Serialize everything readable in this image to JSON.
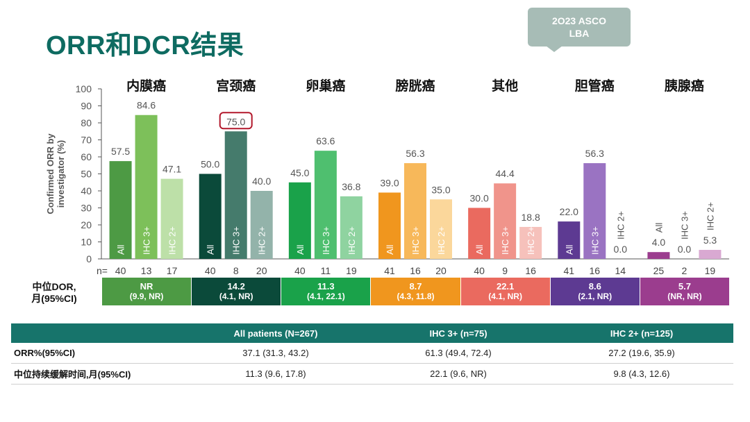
{
  "title": "ORR和DCR结果",
  "badge": {
    "line1": "2O23 ASCO",
    "line2": "LBA"
  },
  "dor_row_label": {
    "line1": "中位DOR,",
    "line2": "月(95%CI)"
  },
  "colors": {
    "axis": "#555555",
    "title": "#0e6b61",
    "table_header": "#17746b",
    "highlight_box": "#b2182b"
  },
  "chart_data": {
    "type": "bar",
    "ylabel": "Confirmed ORR by investigator (%)",
    "ylim": [
      0,
      100
    ],
    "yticks": [
      0,
      10,
      20,
      30,
      40,
      50,
      60,
      70,
      80,
      90,
      100
    ],
    "n_prefix": "n=",
    "highlight": {
      "group": 1,
      "bar": 1
    },
    "groups": [
      {
        "name": "内膜癌",
        "color": "#4d9a44",
        "dor": {
          "value": "NR",
          "ci": "(9.9, NR)"
        },
        "bars": [
          {
            "label": "All",
            "value": 57.5,
            "value_text": "57.5",
            "n": "40",
            "color": "#4d9a44"
          },
          {
            "label": "IHC 3+",
            "value": 84.6,
            "value_text": "84.6",
            "n": "13",
            "color": "#7dc05a"
          },
          {
            "label": "IHC 2+",
            "value": 47.1,
            "value_text": "47.1",
            "n": "17",
            "color": "#bde0a8"
          }
        ]
      },
      {
        "name": "宫颈癌",
        "color": "#0b4a3a",
        "dor": {
          "value": "14.2",
          "ci": "(4.1, NR)"
        },
        "bars": [
          {
            "label": "All",
            "value": 50.0,
            "value_text": "50.0",
            "n": "40",
            "color": "#0b4a3a"
          },
          {
            "label": "IHC 3+",
            "value": 75.0,
            "value_text": "75.0",
            "n": "8",
            "color": "#457b6c"
          },
          {
            "label": "IHC 2+",
            "value": 40.0,
            "value_text": "40.0",
            "n": "20",
            "color": "#93b3aa"
          }
        ]
      },
      {
        "name": "卵巢癌",
        "color": "#1aa24a",
        "dor": {
          "value": "11.3",
          "ci": "(4.1, 22.1)"
        },
        "bars": [
          {
            "label": "All",
            "value": 45.0,
            "value_text": "45.0",
            "n": "40",
            "color": "#1aa24a"
          },
          {
            "label": "IHC 3+",
            "value": 63.6,
            "value_text": "63.6",
            "n": "11",
            "color": "#4fbf6f"
          },
          {
            "label": "IHC 2+",
            "value": 36.8,
            "value_text": "36.8",
            "n": "19",
            "color": "#8fd3a0"
          }
        ]
      },
      {
        "name": "膀胱癌",
        "color": "#f0961e",
        "dor": {
          "value": "8.7",
          "ci": "(4.3, 11.8)"
        },
        "bars": [
          {
            "label": "All",
            "value": 39.0,
            "value_text": "39.0",
            "n": "41",
            "color": "#f0961e"
          },
          {
            "label": "IHC 3+",
            "value": 56.3,
            "value_text": "56.3",
            "n": "16",
            "color": "#f7b85a"
          },
          {
            "label": "IHC 2+",
            "value": 35.0,
            "value_text": "35.0",
            "n": "20",
            "color": "#fbd79b"
          }
        ]
      },
      {
        "name": "其他",
        "color": "#ea6a5f",
        "dor": {
          "value": "22.1",
          "ci": "(4.1, NR)"
        },
        "bars": [
          {
            "label": "All",
            "value": 30.0,
            "value_text": "30.0",
            "n": "40",
            "color": "#ea6a5f"
          },
          {
            "label": "IHC 3+",
            "value": 44.4,
            "value_text": "44.4",
            "n": "9",
            "color": "#f0948b"
          },
          {
            "label": "IHC 2+",
            "value": 18.8,
            "value_text": "18.8",
            "n": "16",
            "color": "#f6c1bb"
          }
        ]
      },
      {
        "name": "胆管癌",
        "color": "#5d3a92",
        "dor": {
          "value": "8.6",
          "ci": "(2.1, NR)"
        },
        "bars": [
          {
            "label": "All",
            "value": 22.0,
            "value_text": "22.0",
            "n": "41",
            "color": "#5d3a92"
          },
          {
            "label": "IHC 3+",
            "value": 56.3,
            "value_text": "56.3",
            "n": "16",
            "color": "#9a73c2"
          },
          {
            "label": "IHC 2+",
            "value": 0.0,
            "value_text": "0.0",
            "n": "14",
            "color": "#c6b1dd"
          }
        ]
      },
      {
        "name": "胰腺癌",
        "color": "#9b3d8e",
        "dor": {
          "value": "5.7",
          "ci": "(NR, NR)"
        },
        "bars": [
          {
            "label": "All",
            "value": 4.0,
            "value_text": "4.0",
            "n": "25",
            "color": "#9b3d8e"
          },
          {
            "label": "IHC 3+",
            "value": 0.0,
            "value_text": "0.0",
            "n": "2",
            "color": "#bf7ab5"
          },
          {
            "label": "IHC 2+",
            "value": 5.3,
            "value_text": "5.3",
            "n": "19",
            "color": "#d9a9d2"
          }
        ]
      }
    ]
  },
  "summary_table": {
    "headers": [
      "",
      "All patients (N=267)",
      "IHC 3+ (n=75)",
      "IHC 2+ (n=125)"
    ],
    "rows": [
      {
        "label": "ORR%(95%CI)",
        "cells": [
          "37.1 (31.3, 43.2)",
          "61.3 (49.4, 72.4)",
          "27.2 (19.6, 35.9)"
        ]
      },
      {
        "label": "中位持续缓解时间,月(95%CI)",
        "cells": [
          "11.3 (9.6, 17.8)",
          "22.1 (9.6, NR)",
          "9.8 (4.3, 12.6)"
        ]
      }
    ]
  }
}
